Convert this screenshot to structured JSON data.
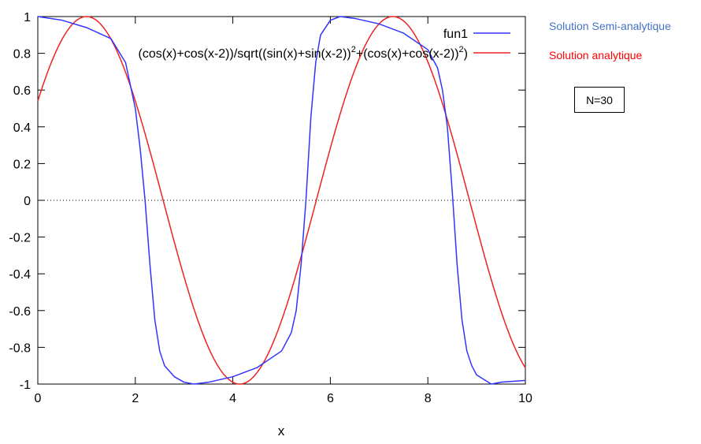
{
  "chart_data": {
    "type": "line",
    "xlabel": "x",
    "ylabel": "",
    "xlim": [
      0,
      10
    ],
    "ylim": [
      -1,
      1
    ],
    "xticks": [
      0,
      2,
      4,
      6,
      8,
      10
    ],
    "yticks": [
      -1,
      -0.8,
      -0.6,
      -0.4,
      -0.2,
      0,
      0.2,
      0.4,
      0.6,
      0.8,
      1
    ],
    "xtick_labels": [
      "0",
      "2",
      "4",
      "6",
      "8",
      "10"
    ],
    "ytick_labels": [
      "-1",
      "-0.8",
      "-0.6",
      "-0.4",
      "-0.2",
      "0",
      "0.2",
      "0.4",
      "0.6",
      "0.8",
      "1"
    ],
    "zero_line": true,
    "grid": false,
    "legend_position": "top-right",
    "series": [
      {
        "name": "fun1",
        "color": "#3333ff",
        "x": [
          0,
          0.5,
          1.0,
          1.5,
          1.8,
          2.0,
          2.1,
          2.2,
          2.3,
          2.4,
          2.5,
          2.6,
          2.8,
          3.0,
          3.2,
          3.5,
          4.0,
          4.5,
          5.0,
          5.2,
          5.3,
          5.4,
          5.5,
          5.6,
          5.7,
          5.8,
          6.0,
          6.2,
          6.5,
          7.0,
          7.5,
          8.0,
          8.2,
          8.3,
          8.4,
          8.5,
          8.6,
          8.7,
          8.8,
          8.9,
          9.0,
          9.3,
          9.5,
          10.0
        ],
        "y": [
          1.0,
          0.98,
          0.94,
          0.88,
          0.75,
          0.5,
          0.28,
          0.0,
          -0.35,
          -0.65,
          -0.82,
          -0.9,
          -0.96,
          -0.99,
          -1.0,
          -0.99,
          -0.96,
          -0.91,
          -0.82,
          -0.72,
          -0.6,
          -0.35,
          0.0,
          0.45,
          0.75,
          0.9,
          0.98,
          1.0,
          0.99,
          0.96,
          0.91,
          0.82,
          0.72,
          0.6,
          0.4,
          0.05,
          -0.35,
          -0.65,
          -0.82,
          -0.9,
          -0.95,
          -1.0,
          -0.99,
          -0.98
        ]
      },
      {
        "name": "(cos(x)+cos(x-2))/sqrt((sin(x)+sin(x-2))²+(cos(x)+cos(x-2))²)",
        "color": "#ee2222",
        "formula": "cos(x-1)"
      }
    ]
  },
  "legend": {
    "entries": [
      {
        "main": "fun1",
        "sup1": "",
        "mid": "",
        "sup2": "",
        "tail": ""
      },
      {
        "main": "(cos(x)+cos(x-2))/sqrt((sin(x)+sin(x-2))",
        "sup1": "2",
        "mid": "+(cos(x)+cos(x-2))",
        "sup2": "2",
        "tail": ")"
      }
    ]
  },
  "annotations": {
    "semi_label": "Solution Semi-analytique",
    "semi_color": "#4472c4",
    "analytic_label": "Solution analytique",
    "analytic_color": "#ff0000",
    "n_label": "N=30"
  }
}
